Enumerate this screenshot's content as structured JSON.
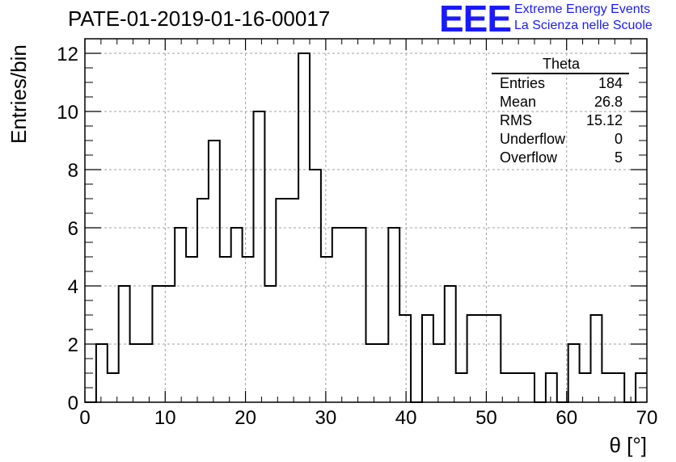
{
  "title": "PATE-01-2019-01-16-00017",
  "logo": {
    "mark": "EEE",
    "line1": "Extreme Energy Events",
    "line2": "La Scienza nelle Scuole"
  },
  "stats": {
    "name": "Theta",
    "rows": [
      {
        "label": "Entries",
        "value": "184"
      },
      {
        "label": "Mean",
        "value": "26.8"
      },
      {
        "label": "RMS",
        "value": "15.12"
      },
      {
        "label": "Underflow",
        "value": "0"
      },
      {
        "label": "Overflow",
        "value": "5"
      }
    ]
  },
  "chart_data": {
    "type": "bar",
    "histogram": true,
    "xlabel": "θ [°]",
    "ylabel": "Entries/bin",
    "xlim": [
      0,
      70
    ],
    "ylim": [
      0,
      12.5
    ],
    "xticks": [
      0,
      10,
      20,
      30,
      40,
      50,
      60,
      70
    ],
    "yticks": [
      0,
      2,
      4,
      6,
      8,
      10,
      12
    ],
    "grid": true,
    "bin_edges": [
      0,
      1.4,
      2.8,
      4.2,
      5.6,
      7,
      8.4,
      9.8,
      11.2,
      12.6,
      14,
      15.4,
      16.8,
      18.2,
      19.6,
      21,
      22.4,
      23.8,
      25.2,
      26.6,
      28,
      29.4,
      30.8,
      32.2,
      33.6,
      35,
      36.4,
      37.8,
      39.2,
      40.6,
      42,
      43.4,
      44.8,
      46.2,
      47.6,
      49,
      50.4,
      51.8,
      53.2,
      54.6,
      56,
      57.4,
      58.8,
      60.2,
      61.6,
      63,
      64.4,
      65.8,
      67.2,
      68.6,
      70
    ],
    "values": [
      0,
      2,
      1,
      4,
      2,
      2,
      4,
      4,
      6,
      5,
      7,
      9,
      5,
      6,
      5,
      10,
      4,
      7,
      7,
      12,
      8,
      5,
      6,
      6,
      6,
      2,
      2,
      6,
      3,
      0,
      3,
      2,
      4,
      1,
      3,
      3,
      3,
      1,
      1,
      1,
      0,
      1,
      0,
      2,
      1,
      3,
      1,
      1,
      0,
      1
    ]
  }
}
